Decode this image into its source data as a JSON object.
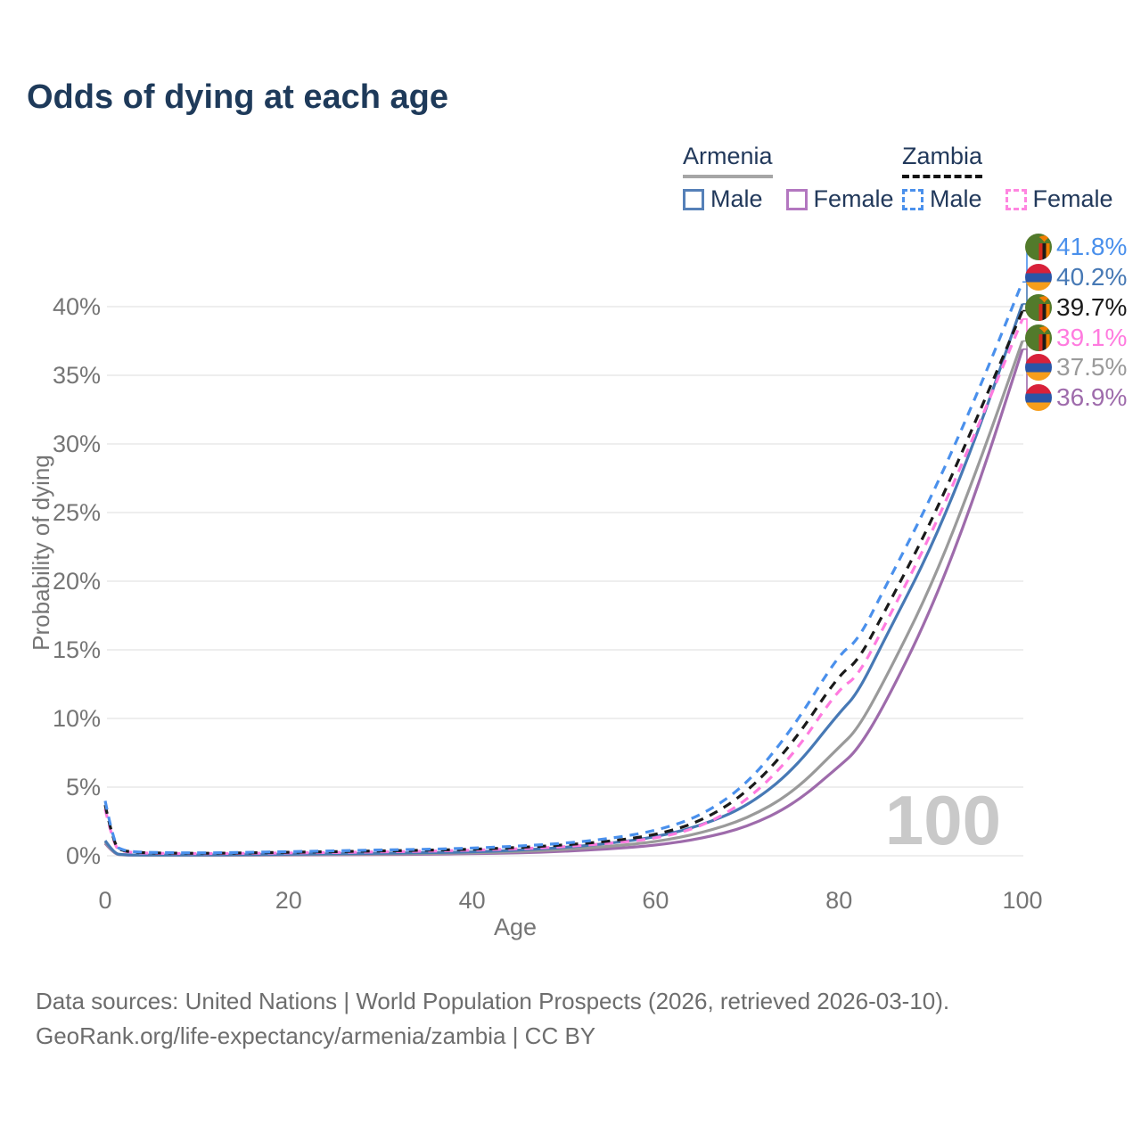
{
  "title": "Odds of dying at each age",
  "legend": {
    "groups": [
      {
        "country": "Armenia",
        "line_style": "solid",
        "underline_color": "#a6a6a6",
        "items": [
          {
            "label": "Male",
            "color": "#5580b8"
          },
          {
            "label": "Female",
            "color": "#b377c0"
          }
        ]
      },
      {
        "country": "Zambia",
        "line_style": "dashed",
        "underline_color": "#141414",
        "items": [
          {
            "label": "Male",
            "color": "#4a90ec"
          },
          {
            "label": "Female",
            "color": "#ff85e0"
          }
        ]
      }
    ]
  },
  "watermark": "100",
  "chart_data": {
    "type": "line",
    "title": "Odds of dying at each age",
    "xlabel": "Age",
    "ylabel": "Probability of dying",
    "xlim": [
      0,
      100
    ],
    "ylim": [
      0,
      44
    ],
    "x_ticks": [
      0,
      20,
      40,
      60,
      80,
      100
    ],
    "y_ticks": [
      {
        "value": 0,
        "label": "0%"
      },
      {
        "value": 5,
        "label": "5%"
      },
      {
        "value": 10,
        "label": "10%"
      },
      {
        "value": 15,
        "label": "15%"
      },
      {
        "value": 20,
        "label": "20%"
      },
      {
        "value": 25,
        "label": "25%"
      },
      {
        "value": 30,
        "label": "30%"
      },
      {
        "value": 35,
        "label": "35%"
      },
      {
        "value": 40,
        "label": "40%"
      }
    ],
    "grid": "horizontal-only",
    "legend_position": "top-right",
    "ages": [
      0,
      1,
      2,
      3,
      4,
      5,
      10,
      15,
      20,
      25,
      30,
      35,
      40,
      45,
      50,
      55,
      60,
      65,
      70,
      75,
      80,
      82,
      85,
      90,
      95,
      100
    ],
    "series": [
      {
        "id": "armenia-female",
        "country": "Armenia",
        "sex": "Female",
        "color": "#9e6bab",
        "dash": false,
        "values": [
          0.9,
          0.11,
          0.06,
          0.04,
          0.04,
          0.03,
          0.03,
          0.04,
          0.06,
          0.07,
          0.09,
          0.11,
          0.15,
          0.21,
          0.32,
          0.5,
          0.75,
          1.25,
          2.1,
          3.7,
          6.5,
          7.7,
          11.0,
          17.8,
          26.5,
          36.9
        ]
      },
      {
        "id": "armenia-both",
        "country": "Armenia",
        "sex": "Both",
        "color": "#9a9a9a",
        "dash": false,
        "values": [
          1.0,
          0.13,
          0.07,
          0.05,
          0.04,
          0.04,
          0.04,
          0.06,
          0.09,
          0.11,
          0.13,
          0.16,
          0.21,
          0.3,
          0.45,
          0.68,
          1.0,
          1.65,
          2.7,
          4.6,
          7.9,
          9.2,
          12.8,
          19.5,
          28.0,
          37.5
        ]
      },
      {
        "id": "armenia-male",
        "country": "Armenia",
        "sex": "Male",
        "color": "#4779b5",
        "dash": false,
        "values": [
          1.1,
          0.15,
          0.08,
          0.06,
          0.05,
          0.05,
          0.05,
          0.08,
          0.12,
          0.15,
          0.18,
          0.22,
          0.28,
          0.4,
          0.6,
          0.9,
          1.35,
          2.2,
          3.6,
          6.2,
          10.4,
          11.8,
          15.8,
          22.3,
          30.5,
          40.2
        ]
      },
      {
        "id": "zambia-female",
        "country": "Zambia",
        "sex": "Female",
        "color": "#ff7bdf",
        "dash": true,
        "values": [
          3.4,
          0.55,
          0.32,
          0.24,
          0.2,
          0.18,
          0.15,
          0.17,
          0.2,
          0.24,
          0.28,
          0.33,
          0.4,
          0.5,
          0.65,
          0.9,
          1.25,
          2.1,
          4.0,
          7.3,
          12.2,
          13.0,
          16.8,
          23.3,
          31.0,
          39.1
        ]
      },
      {
        "id": "zambia-both",
        "country": "Zambia",
        "sex": "Both",
        "color": "#1a1a1a",
        "dash": true,
        "values": [
          3.7,
          0.62,
          0.36,
          0.27,
          0.23,
          0.21,
          0.17,
          0.2,
          0.25,
          0.3,
          0.35,
          0.4,
          0.47,
          0.6,
          0.78,
          1.05,
          1.5,
          2.5,
          4.6,
          8.2,
          13.2,
          14.1,
          17.8,
          24.2,
          31.8,
          39.7
        ]
      },
      {
        "id": "zambia-male",
        "country": "Zambia",
        "sex": "Male",
        "color": "#4a90ec",
        "dash": true,
        "values": [
          4.0,
          0.7,
          0.4,
          0.3,
          0.26,
          0.24,
          0.2,
          0.24,
          0.3,
          0.36,
          0.42,
          0.47,
          0.55,
          0.7,
          0.9,
          1.25,
          1.8,
          2.9,
          5.2,
          9.3,
          14.7,
          15.6,
          19.5,
          26.0,
          33.5,
          41.8
        ]
      }
    ]
  },
  "end_labels": [
    {
      "value": "41.8%",
      "flag": "zambia",
      "series": "zambia-male",
      "color": "#4a90ec"
    },
    {
      "value": "40.2%",
      "flag": "armenia",
      "series": "armenia-male",
      "color": "#4779b5"
    },
    {
      "value": "39.7%",
      "flag": "zambia",
      "series": "zambia-both",
      "color": "#1a1a1a"
    },
    {
      "value": "39.1%",
      "flag": "zambia",
      "series": "zambia-female",
      "color": "#ff7bdf"
    },
    {
      "value": "37.5%",
      "flag": "armenia",
      "series": "armenia-both",
      "color": "#9a9a9a"
    },
    {
      "value": "36.9%",
      "flag": "armenia",
      "series": "armenia-female",
      "color": "#9e6bab"
    }
  ],
  "footer": {
    "line1": "Data sources: United Nations | World Population Prospects (2026, retrieved 2026-03-10).",
    "line2": "GeoRank.org/life-expectancy/armenia/zambia | CC BY"
  }
}
